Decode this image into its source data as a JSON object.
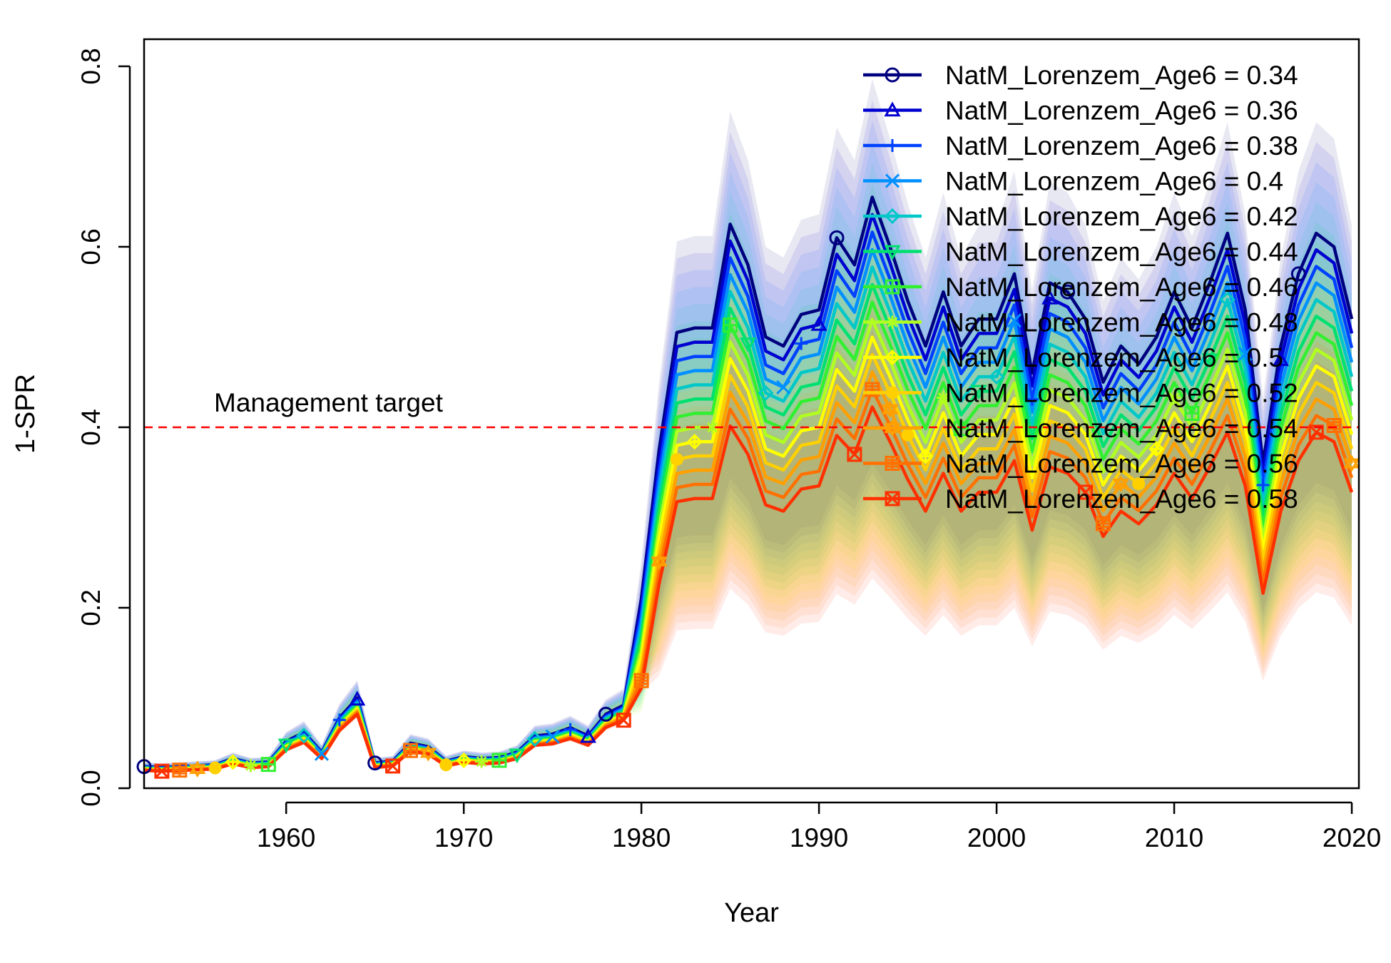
{
  "chart_data": {
    "type": "line",
    "title": "",
    "xlabel": "Year",
    "ylabel": "1-SPR",
    "xlim": [
      1952,
      2020
    ],
    "ylim": [
      0,
      0.8
    ],
    "x_ticks": [
      1960,
      1970,
      1980,
      1990,
      2000,
      2010,
      2020
    ],
    "y_ticks": [
      0.0,
      0.2,
      0.4,
      0.6,
      0.8
    ],
    "x_tick_labels": [
      "1960",
      "1970",
      "1980",
      "1990",
      "2000",
      "2010",
      "2020"
    ],
    "y_tick_labels": [
      "0.0",
      "0.2",
      "0.4",
      "0.6",
      "0.8"
    ],
    "grid": false,
    "legend_position": "top-right",
    "reference_line": {
      "y": 0.4,
      "label": "Management target",
      "color": "#ff0000"
    },
    "x": [
      1952,
      1953,
      1954,
      1955,
      1956,
      1957,
      1958,
      1959,
      1960,
      1961,
      1962,
      1963,
      1964,
      1965,
      1966,
      1967,
      1968,
      1969,
      1970,
      1971,
      1972,
      1973,
      1974,
      1975,
      1976,
      1977,
      1978,
      1979,
      1980,
      1981,
      1982,
      1983,
      1984,
      1985,
      1986,
      1987,
      1988,
      1989,
      1990,
      1991,
      1992,
      1993,
      1994,
      1995,
      1996,
      1997,
      1998,
      1999,
      2000,
      2001,
      2002,
      2003,
      2004,
      2005,
      2006,
      2007,
      2008,
      2009,
      2010,
      2011,
      2012,
      2013,
      2014,
      2015,
      2016,
      2017,
      2018,
      2019,
      2020
    ],
    "base_series": [
      0.024,
      0.023,
      0.024,
      0.025,
      0.026,
      0.033,
      0.028,
      0.029,
      0.052,
      0.062,
      0.04,
      0.078,
      0.1,
      0.028,
      0.03,
      0.05,
      0.046,
      0.03,
      0.035,
      0.033,
      0.034,
      0.04,
      0.058,
      0.06,
      0.067,
      0.058,
      0.082,
      0.092,
      0.21,
      0.375,
      0.505,
      0.51,
      0.51,
      0.625,
      0.58,
      0.5,
      0.49,
      0.525,
      0.53,
      0.61,
      0.58,
      0.655,
      0.6,
      0.54,
      0.49,
      0.55,
      0.49,
      0.52,
      0.52,
      0.57,
      0.46,
      0.56,
      0.55,
      0.52,
      0.45,
      0.49,
      0.47,
      0.5,
      0.55,
      0.51,
      0.56,
      0.615,
      0.53,
      0.36,
      0.49,
      0.57,
      0.615,
      0.6,
      0.52
    ],
    "series_offsets": [
      0.0,
      -0.003,
      -0.006,
      -0.009,
      -0.012,
      -0.015,
      -0.018,
      -0.021,
      -0.024,
      -0.027,
      -0.03,
      -0.033,
      -0.036
    ],
    "series_scale": [
      1.0,
      0.975,
      0.95,
      0.925,
      0.9,
      0.875,
      0.85,
      0.825,
      0.8,
      0.775,
      0.75,
      0.725,
      0.7
    ],
    "band": {
      "low_factor": 0.55,
      "high_factor": 1.2
    },
    "series": [
      {
        "name": "NatM_Lorenzem_Age6 = 0.34",
        "color": "#00007f",
        "marker": "circle"
      },
      {
        "name": "NatM_Lorenzem_Age6 = 0.36",
        "color": "#0000d0",
        "marker": "triangle"
      },
      {
        "name": "NatM_Lorenzem_Age6 = 0.38",
        "color": "#0040ff",
        "marker": "plus"
      },
      {
        "name": "NatM_Lorenzem_Age6 = 0.4",
        "color": "#0090ff",
        "marker": "x"
      },
      {
        "name": "NatM_Lorenzem_Age6 = 0.42",
        "color": "#00c8c8",
        "marker": "diamond"
      },
      {
        "name": "NatM_Lorenzem_Age6 = 0.44",
        "color": "#00e070",
        "marker": "triangle-down"
      },
      {
        "name": "NatM_Lorenzem_Age6 = 0.46",
        "color": "#30f030",
        "marker": "square-plus"
      },
      {
        "name": "NatM_Lorenzem_Age6 = 0.48",
        "color": "#b0ff20",
        "marker": "star"
      },
      {
        "name": "NatM_Lorenzem_Age6 = 0.5",
        "color": "#ffff00",
        "marker": "diamond-plus"
      },
      {
        "name": "NatM_Lorenzem_Age6 = 0.52",
        "color": "#ffd000",
        "marker": "filled-circle"
      },
      {
        "name": "NatM_Lorenzem_Age6 = 0.54",
        "color": "#ffa000",
        "marker": "star-of-david"
      },
      {
        "name": "NatM_Lorenzem_Age6 = 0.56",
        "color": "#ff7000",
        "marker": "square-grid"
      },
      {
        "name": "NatM_Lorenzem_Age6 = 0.58",
        "color": "#ff3000",
        "marker": "square-x"
      }
    ]
  }
}
